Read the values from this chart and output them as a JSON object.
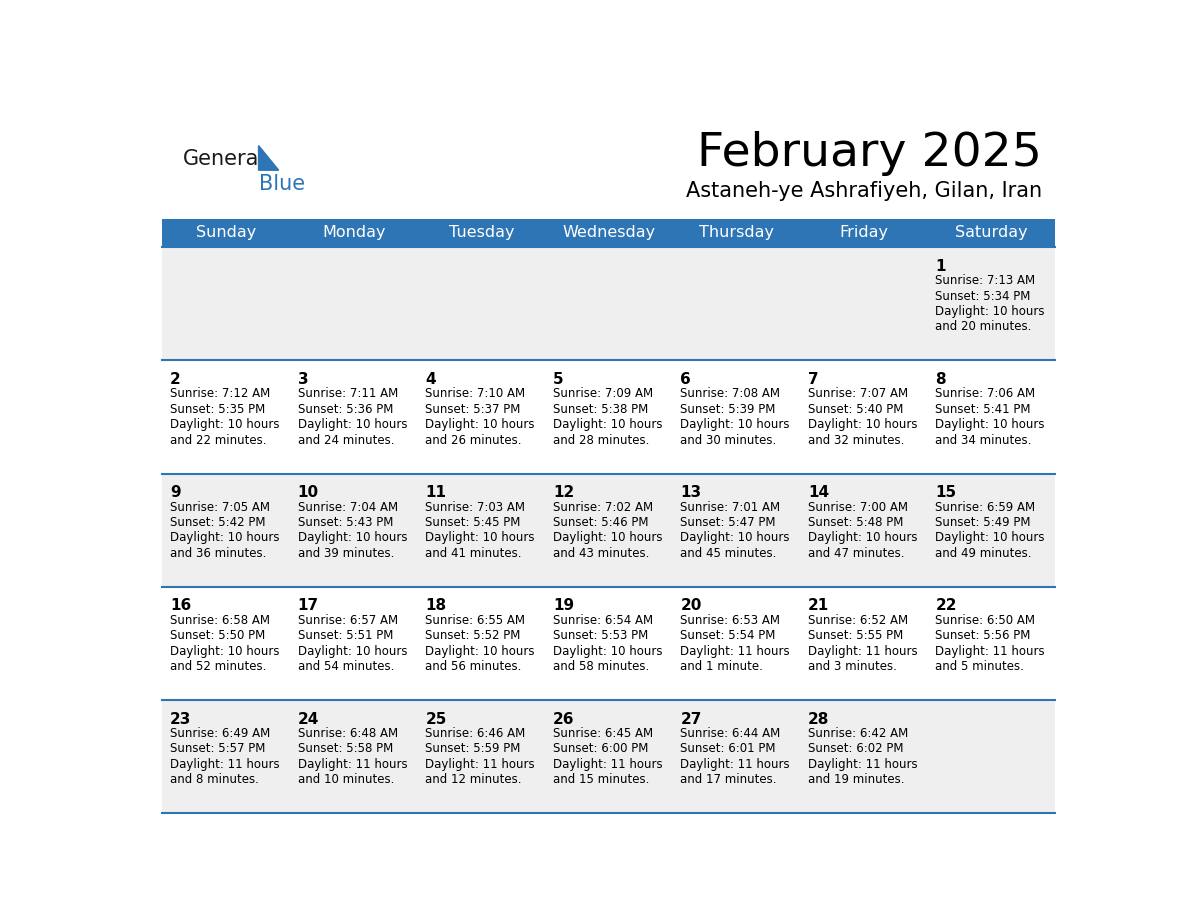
{
  "title": "February 2025",
  "subtitle": "Astaneh-ye Ashrafiyeh, Gilan, Iran",
  "days_of_week": [
    "Sunday",
    "Monday",
    "Tuesday",
    "Wednesday",
    "Thursday",
    "Friday",
    "Saturday"
  ],
  "header_bg": "#2E75B6",
  "header_text": "#FFFFFF",
  "row_bg_light": "#EFEFEF",
  "row_bg_white": "#FFFFFF",
  "separator_color": "#2E75B6",
  "text_color": "#000000",
  "title_color": "#000000",
  "subtitle_color": "#000000",
  "logo_general_color": "#1a1a1a",
  "logo_blue_color": "#2E75B6",
  "logo_triangle_color": "#2E75B6",
  "calendar_data": [
    [
      null,
      null,
      null,
      null,
      null,
      null,
      {
        "day": "1",
        "sunrise": "7:13 AM",
        "sunset": "5:34 PM",
        "daylight": "10 hours",
        "daylight2": "and 20 minutes."
      }
    ],
    [
      {
        "day": "2",
        "sunrise": "7:12 AM",
        "sunset": "5:35 PM",
        "daylight": "10 hours",
        "daylight2": "and 22 minutes."
      },
      {
        "day": "3",
        "sunrise": "7:11 AM",
        "sunset": "5:36 PM",
        "daylight": "10 hours",
        "daylight2": "and 24 minutes."
      },
      {
        "day": "4",
        "sunrise": "7:10 AM",
        "sunset": "5:37 PM",
        "daylight": "10 hours",
        "daylight2": "and 26 minutes."
      },
      {
        "day": "5",
        "sunrise": "7:09 AM",
        "sunset": "5:38 PM",
        "daylight": "10 hours",
        "daylight2": "and 28 minutes."
      },
      {
        "day": "6",
        "sunrise": "7:08 AM",
        "sunset": "5:39 PM",
        "daylight": "10 hours",
        "daylight2": "and 30 minutes."
      },
      {
        "day": "7",
        "sunrise": "7:07 AM",
        "sunset": "5:40 PM",
        "daylight": "10 hours",
        "daylight2": "and 32 minutes."
      },
      {
        "day": "8",
        "sunrise": "7:06 AM",
        "sunset": "5:41 PM",
        "daylight": "10 hours",
        "daylight2": "and 34 minutes."
      }
    ],
    [
      {
        "day": "9",
        "sunrise": "7:05 AM",
        "sunset": "5:42 PM",
        "daylight": "10 hours",
        "daylight2": "and 36 minutes."
      },
      {
        "day": "10",
        "sunrise": "7:04 AM",
        "sunset": "5:43 PM",
        "daylight": "10 hours",
        "daylight2": "and 39 minutes."
      },
      {
        "day": "11",
        "sunrise": "7:03 AM",
        "sunset": "5:45 PM",
        "daylight": "10 hours",
        "daylight2": "and 41 minutes."
      },
      {
        "day": "12",
        "sunrise": "7:02 AM",
        "sunset": "5:46 PM",
        "daylight": "10 hours",
        "daylight2": "and 43 minutes."
      },
      {
        "day": "13",
        "sunrise": "7:01 AM",
        "sunset": "5:47 PM",
        "daylight": "10 hours",
        "daylight2": "and 45 minutes."
      },
      {
        "day": "14",
        "sunrise": "7:00 AM",
        "sunset": "5:48 PM",
        "daylight": "10 hours",
        "daylight2": "and 47 minutes."
      },
      {
        "day": "15",
        "sunrise": "6:59 AM",
        "sunset": "5:49 PM",
        "daylight": "10 hours",
        "daylight2": "and 49 minutes."
      }
    ],
    [
      {
        "day": "16",
        "sunrise": "6:58 AM",
        "sunset": "5:50 PM",
        "daylight": "10 hours",
        "daylight2": "and 52 minutes."
      },
      {
        "day": "17",
        "sunrise": "6:57 AM",
        "sunset": "5:51 PM",
        "daylight": "10 hours",
        "daylight2": "and 54 minutes."
      },
      {
        "day": "18",
        "sunrise": "6:55 AM",
        "sunset": "5:52 PM",
        "daylight": "10 hours",
        "daylight2": "and 56 minutes."
      },
      {
        "day": "19",
        "sunrise": "6:54 AM",
        "sunset": "5:53 PM",
        "daylight": "10 hours",
        "daylight2": "and 58 minutes."
      },
      {
        "day": "20",
        "sunrise": "6:53 AM",
        "sunset": "5:54 PM",
        "daylight": "11 hours",
        "daylight2": "and 1 minute."
      },
      {
        "day": "21",
        "sunrise": "6:52 AM",
        "sunset": "5:55 PM",
        "daylight": "11 hours",
        "daylight2": "and 3 minutes."
      },
      {
        "day": "22",
        "sunrise": "6:50 AM",
        "sunset": "5:56 PM",
        "daylight": "11 hours",
        "daylight2": "and 5 minutes."
      }
    ],
    [
      {
        "day": "23",
        "sunrise": "6:49 AM",
        "sunset": "5:57 PM",
        "daylight": "11 hours",
        "daylight2": "and 8 minutes."
      },
      {
        "day": "24",
        "sunrise": "6:48 AM",
        "sunset": "5:58 PM",
        "daylight": "11 hours",
        "daylight2": "and 10 minutes."
      },
      {
        "day": "25",
        "sunrise": "6:46 AM",
        "sunset": "5:59 PM",
        "daylight": "11 hours",
        "daylight2": "and 12 minutes."
      },
      {
        "day": "26",
        "sunrise": "6:45 AM",
        "sunset": "6:00 PM",
        "daylight": "11 hours",
        "daylight2": "and 15 minutes."
      },
      {
        "day": "27",
        "sunrise": "6:44 AM",
        "sunset": "6:01 PM",
        "daylight": "11 hours",
        "daylight2": "and 17 minutes."
      },
      {
        "day": "28",
        "sunrise": "6:42 AM",
        "sunset": "6:02 PM",
        "daylight": "11 hours",
        "daylight2": "and 19 minutes."
      },
      null
    ]
  ]
}
